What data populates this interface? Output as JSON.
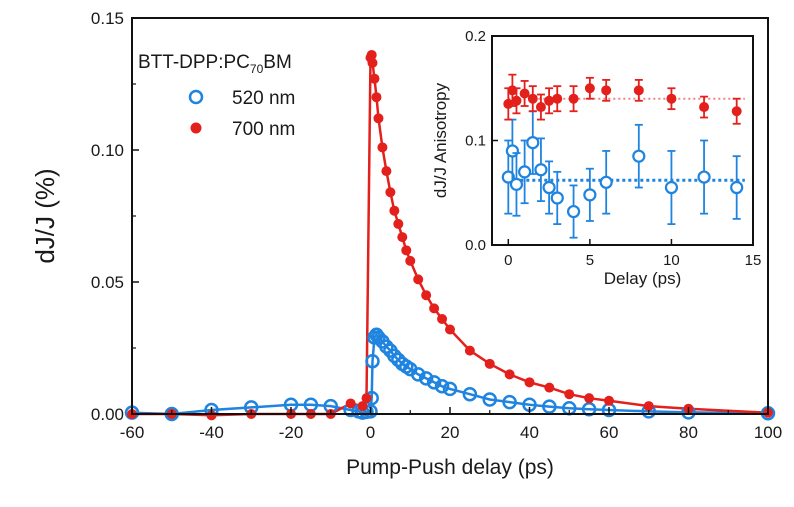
{
  "chart_data": [
    {
      "type": "scatter",
      "xlabel": "Pump-Push delay (ps)",
      "ylabel": "dJ/J (%)",
      "xlim": [
        -60,
        100
      ],
      "ylim": [
        0,
        0.15
      ],
      "xticks": [
        -60,
        -40,
        -20,
        0,
        20,
        40,
        60,
        80,
        100
      ],
      "yticks": [
        "0.00",
        "0.05",
        "0.10",
        "0.15"
      ],
      "legend_title": "BTT-DPP:PC",
      "legend_title_sub": "70",
      "legend_title_tail": "BM",
      "legend_position": "top-left",
      "grid": false,
      "series": [
        {
          "name": "520 nm",
          "color": "#1f84e0",
          "marker": "open-circle",
          "x": [
            -60,
            -50,
            -40,
            -30,
            -20,
            -15,
            -10,
            -5,
            -3,
            -2,
            -1,
            0,
            0.3,
            0.5,
            1,
            1.5,
            2,
            3,
            4,
            5,
            6,
            7,
            8,
            9,
            10,
            12,
            14,
            16,
            18,
            20,
            25,
            30,
            35,
            40,
            45,
            50,
            55,
            60,
            70,
            80,
            100
          ],
          "y": [
            0.0005,
            0.0,
            0.0015,
            0.0025,
            0.0035,
            0.0035,
            0.003,
            0.0015,
            0.001,
            0.0005,
            0.0008,
            0.001,
            0.006,
            0.02,
            0.029,
            0.03,
            0.029,
            0.0275,
            0.0255,
            0.024,
            0.022,
            0.0205,
            0.019,
            0.018,
            0.017,
            0.015,
            0.0135,
            0.012,
            0.0105,
            0.0095,
            0.0075,
            0.0055,
            0.0045,
            0.0035,
            0.0028,
            0.0022,
            0.0018,
            0.0015,
            0.001,
            0.0006,
            0.0003
          ]
        },
        {
          "name": "700 nm",
          "color": "#e3201b",
          "marker": "filled-circle",
          "x": [
            -60,
            -50,
            -40,
            -30,
            -20,
            -15,
            -10,
            -5,
            -2,
            -1,
            0,
            0.3,
            0.5,
            1,
            1.5,
            2,
            3,
            4,
            5,
            6,
            7,
            8,
            9,
            10,
            12,
            14,
            16,
            18,
            20,
            25,
            30,
            35,
            40,
            45,
            50,
            55,
            60,
            70,
            80,
            100
          ],
          "y": [
            0.0,
            0.0,
            -0.0005,
            0.0,
            0.0,
            0.0,
            0.0,
            0.004,
            0.003,
            0.006,
            0.135,
            0.136,
            0.133,
            0.127,
            0.12,
            0.112,
            0.101,
            0.092,
            0.084,
            0.077,
            0.072,
            0.067,
            0.062,
            0.058,
            0.051,
            0.045,
            0.04,
            0.036,
            0.032,
            0.024,
            0.019,
            0.015,
            0.012,
            0.01,
            0.0075,
            0.006,
            0.005,
            0.003,
            0.002,
            0.0005
          ]
        }
      ]
    },
    {
      "type": "scatter",
      "inset": true,
      "xlabel": "Delay (ps)",
      "ylabel": "dJ/J Anisotropy",
      "xlim": [
        -1,
        15
      ],
      "ylim": [
        0,
        0.2
      ],
      "xticks": [
        0,
        5,
        10,
        15
      ],
      "yticks": [
        "0.0",
        "0.1",
        "0.2"
      ],
      "grid": false,
      "series": [
        {
          "name": "520 nm",
          "color": "#1f84e0",
          "marker": "open-circle",
          "x": [
            0,
            0.25,
            0.5,
            1,
            1.5,
            2,
            2.5,
            3,
            4,
            5,
            6,
            8,
            10,
            12,
            14
          ],
          "y": [
            0.065,
            0.09,
            0.058,
            0.07,
            0.098,
            0.072,
            0.055,
            0.045,
            0.032,
            0.048,
            0.06,
            0.085,
            0.055,
            0.065,
            0.055
          ],
          "error": [
            0.035,
            0.03,
            0.03,
            0.03,
            0.03,
            0.03,
            0.025,
            0.025,
            0.025,
            0.025,
            0.03,
            0.03,
            0.035,
            0.035,
            0.03
          ],
          "fit_value": 0.062
        },
        {
          "name": "700 nm",
          "color": "#e3201b",
          "marker": "filled-circle",
          "x": [
            0,
            0.25,
            0.5,
            1,
            1.5,
            2,
            2.5,
            3,
            4,
            5,
            6,
            8,
            10,
            12,
            14
          ],
          "y": [
            0.135,
            0.148,
            0.138,
            0.145,
            0.14,
            0.132,
            0.138,
            0.14,
            0.14,
            0.15,
            0.148,
            0.148,
            0.14,
            0.132,
            0.128
          ],
          "error": [
            0.015,
            0.015,
            0.012,
            0.012,
            0.012,
            0.012,
            0.012,
            0.012,
            0.012,
            0.01,
            0.01,
            0.01,
            0.01,
            0.01,
            0.012
          ],
          "fit_value": 0.14
        }
      ]
    }
  ]
}
